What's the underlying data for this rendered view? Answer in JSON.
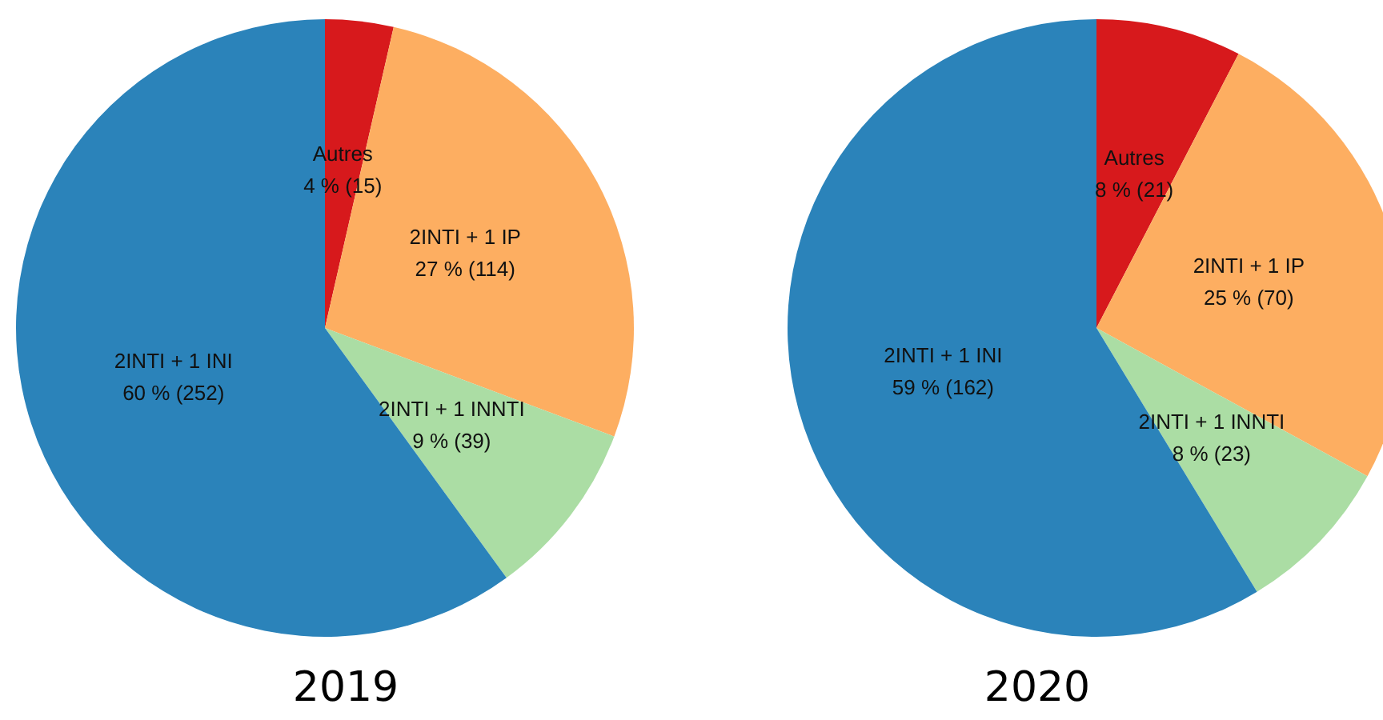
{
  "chart_data": [
    {
      "type": "pie",
      "title": "2019",
      "categories": [
        "Autres",
        "2INTI + 1 IP",
        "2INTI + 1 INNTI",
        "2INTI + 1 INI"
      ],
      "values": [
        15,
        114,
        39,
        252
      ],
      "colors": [
        "#d7191c",
        "#fdae61",
        "#abdda4",
        "#2b83ba"
      ],
      "value_labels": [
        "4 % (15)",
        "27 % (114)",
        "9 % (39)",
        "60 % (252)"
      ],
      "legend": false
    },
    {
      "type": "pie",
      "title": "2020",
      "categories": [
        "Autres",
        "2INTI + 1 IP",
        "2INTI + 1 INNTI",
        "2INTI + 1 INI"
      ],
      "values": [
        21,
        70,
        23,
        162
      ],
      "colors": [
        "#d7191c",
        "#fdae61",
        "#abdda4",
        "#2b83ba"
      ],
      "value_labels": [
        "8 % (21)",
        "25 % (70)",
        "8 % (23)",
        "59 % (162)"
      ],
      "legend": false
    }
  ]
}
